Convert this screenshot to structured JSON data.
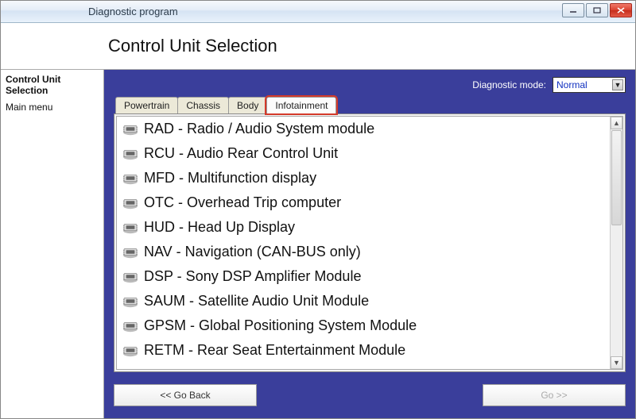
{
  "window": {
    "title": "Diagnostic program"
  },
  "header": {
    "title": "Control Unit Selection"
  },
  "sidebar": {
    "items": [
      {
        "label": "Control Unit Selection",
        "bold": true
      },
      {
        "label": "Main menu",
        "bold": false
      }
    ]
  },
  "diagnostic": {
    "label": "Diagnostic mode:",
    "selected": "Normal"
  },
  "tabs": [
    {
      "label": "Powertrain",
      "active": false
    },
    {
      "label": "Chassis",
      "active": false
    },
    {
      "label": "Body",
      "active": false
    },
    {
      "label": "Infotainment",
      "active": true
    }
  ],
  "modules": [
    "RAD - Radio / Audio System module",
    "RCU - Audio Rear Control Unit",
    "MFD - Multifunction display",
    "OTC - Overhead Trip computer",
    "HUD - Head Up Display",
    "NAV - Navigation (CAN-BUS only)",
    "DSP - Sony DSP Amplifier Module",
    "SAUM - Satellite Audio Unit Module",
    "GPSM - Global Positioning System Module",
    "RETM - Rear Seat Entertainment Module"
  ],
  "footer": {
    "back": "<< Go Back",
    "go": "Go >>"
  },
  "colors": {
    "content_bg": "#3a3e9b",
    "highlight_border": "#d43a2a",
    "select_text": "#1030c0"
  }
}
